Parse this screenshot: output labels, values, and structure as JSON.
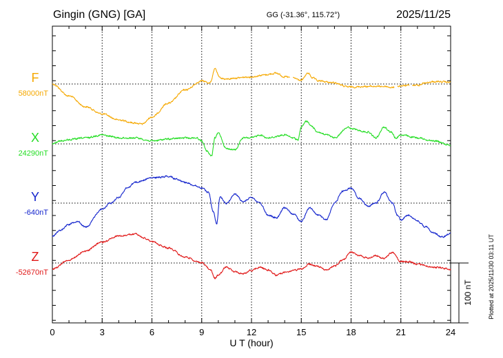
{
  "header": {
    "station": "Gingin (GNG)  [GA]",
    "coords": "GG (-31.36°, 115.72°)",
    "date": "2025/11/25"
  },
  "plotted_note": "Plotted at 2025/11/30 03:11 UT",
  "scale_label": "100 nT",
  "chart_data": {
    "type": "line",
    "title": "Gingin (GNG)  [GA]",
    "xlabel": "U T (hour)",
    "ylabel": "",
    "xlim": [
      0,
      24
    ],
    "x_ticks": [
      "0",
      "3",
      "6",
      "9",
      "12",
      "15",
      "18",
      "21",
      "24"
    ],
    "grid": true,
    "scale_bar_nT": 100,
    "series": [
      {
        "name": "F",
        "baseline_label": "58000nT",
        "color": "#f5a800",
        "baseline": 58000,
        "x": [
          0,
          1,
          2,
          3,
          4,
          5,
          5.4,
          6,
          7,
          8,
          9,
          9.5,
          9.8,
          10.1,
          10.5,
          11,
          12,
          12.7,
          13.5,
          14,
          14.5,
          15,
          15.4,
          15.7,
          16,
          17,
          17.8,
          18,
          19,
          20,
          20.5,
          21,
          22,
          22.5,
          23,
          24
        ],
        "y": [
          58000,
          57980,
          57962,
          57950,
          57940,
          57935,
          57933,
          57945,
          57968,
          57990,
          58005,
          58002,
          58025,
          58010,
          58008,
          58010,
          58012,
          58015,
          58018,
          58012,
          58010,
          58006,
          58018,
          58010,
          58005,
          58002,
          57995,
          57995,
          57996,
          57996,
          57994,
          57997,
          57998,
          58002,
          58004,
          58003
        ],
        "gaps_after_x": [
          14.3,
          20.6,
          21.5
        ]
      },
      {
        "name": "X",
        "baseline_label": "24290nT",
        "color": "#22dd22",
        "baseline": 24290,
        "x": [
          0,
          0.5,
          1,
          2,
          3,
          3.4,
          4,
          5,
          6,
          7,
          8,
          8.7,
          9,
          9.3,
          9.6,
          9.8,
          10,
          10.5,
          11,
          11.5,
          12,
          12.5,
          13,
          14,
          14.5,
          14.8,
          15,
          15.3,
          15.6,
          16,
          16.5,
          17,
          17.8,
          18,
          19,
          19.5,
          20,
          20.4,
          20.7,
          21,
          22,
          23,
          24
        ],
        "y": [
          24290,
          24295,
          24297,
          24300,
          24305,
          24303,
          24300,
          24300,
          24295,
          24298,
          24300,
          24300,
          24295,
          24278,
          24270,
          24300,
          24308,
          24282,
          24280,
          24300,
          24300,
          24305,
          24300,
          24305,
          24300,
          24297,
          24318,
          24328,
          24320,
          24310,
          24305,
          24300,
          24318,
          24315,
          24310,
          24300,
          24318,
          24310,
          24300,
          24305,
          24300,
          24295,
          24288
        ]
      },
      {
        "name": "Y",
        "baseline_label": "-640nT",
        "color": "#1122cc",
        "baseline": -640,
        "x": [
          0,
          0.5,
          1,
          1.5,
          2,
          3,
          3.5,
          4,
          4.5,
          5,
          6,
          7,
          7.5,
          8,
          8.5,
          9,
          9.4,
          9.7,
          9.9,
          10.1,
          10.5,
          11,
          11.5,
          12,
          12.5,
          13,
          13.5,
          14,
          14.5,
          15,
          15.5,
          16,
          16.5,
          17,
          17.5,
          18,
          18.5,
          19,
          19.5,
          20,
          20.5,
          20.8,
          21,
          21.5,
          22,
          22.5,
          23,
          23.5,
          24
        ],
        "y": [
          -695,
          -685,
          -675,
          -670,
          -680,
          -650,
          -640,
          -630,
          -615,
          -605,
          -598,
          -595,
          -600,
          -605,
          -610,
          -615,
          -622,
          -655,
          -675,
          -630,
          -640,
          -625,
          -638,
          -630,
          -640,
          -660,
          -665,
          -648,
          -658,
          -670,
          -648,
          -660,
          -668,
          -640,
          -620,
          -615,
          -632,
          -645,
          -640,
          -622,
          -640,
          -660,
          -668,
          -660,
          -670,
          -680,
          -690,
          -697,
          -690
        ]
      },
      {
        "name": "Z",
        "baseline_label": "-52670nT",
        "color": "#e01515",
        "baseline": -52670,
        "x": [
          0,
          1,
          2,
          3,
          4,
          5,
          5.5,
          6,
          7,
          8,
          9,
          9.5,
          9.8,
          10,
          10.5,
          11,
          11.5,
          12,
          12.5,
          13,
          13.5,
          14,
          14.5,
          15,
          15.5,
          16,
          16.5,
          17,
          17.5,
          18,
          18.5,
          19,
          19.5,
          20,
          20.5,
          21,
          21.5,
          22,
          23,
          24
        ],
        "y": [
          -52680,
          -52665,
          -52650,
          -52635,
          -52625,
          -52622,
          -52628,
          -52635,
          -52645,
          -52660,
          -52670,
          -52680,
          -52695,
          -52690,
          -52677,
          -52685,
          -52688,
          -52682,
          -52677,
          -52682,
          -52690,
          -52686,
          -52683,
          -52680,
          -52672,
          -52676,
          -52682,
          -52675,
          -52665,
          -52652,
          -52657,
          -52662,
          -52658,
          -52662,
          -52652,
          -52668,
          -52668,
          -52672,
          -52677,
          -52680
        ]
      }
    ]
  }
}
